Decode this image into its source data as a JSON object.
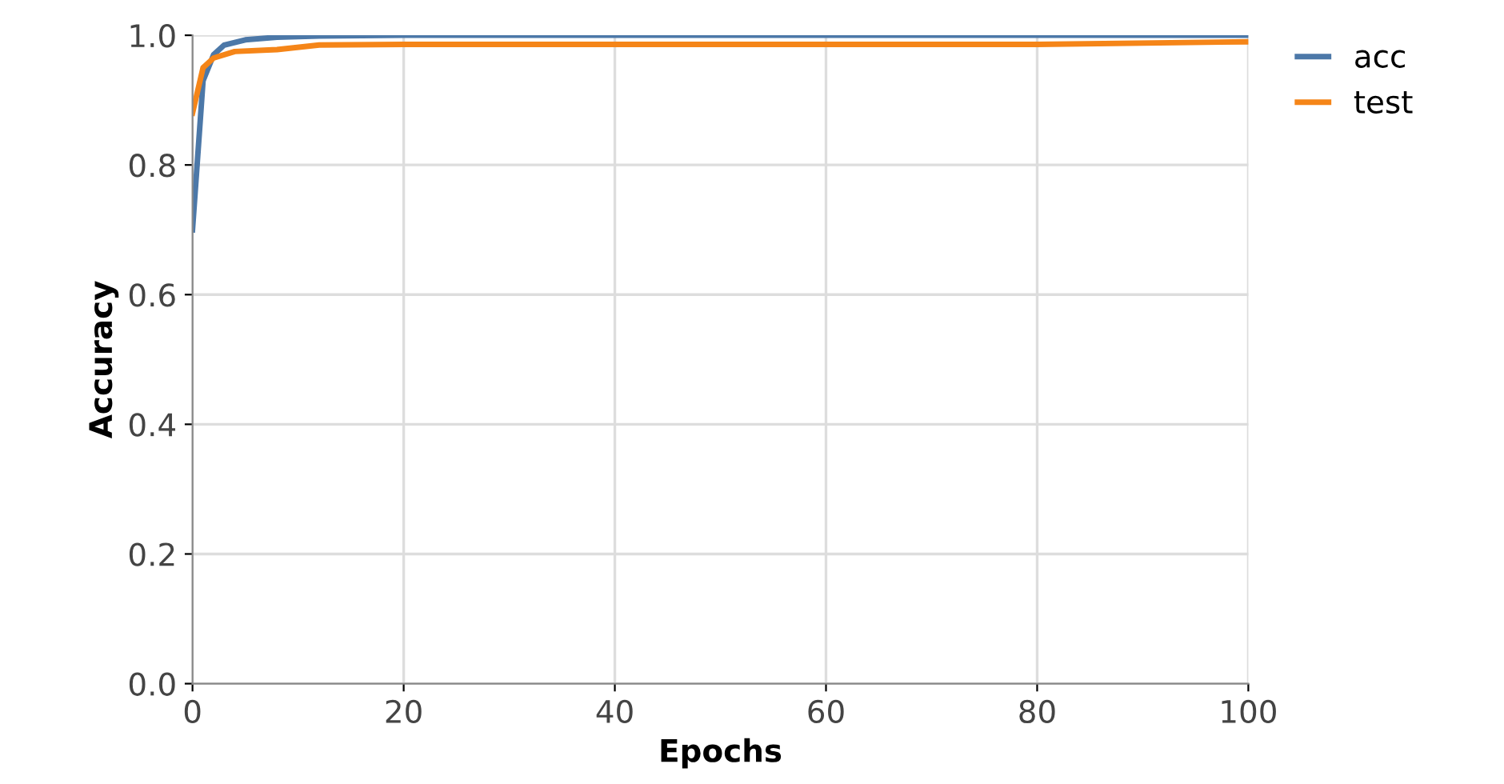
{
  "chart_data": {
    "type": "line",
    "xlabel": "Epochs",
    "ylabel": "Accuracy",
    "xlim": [
      0,
      100
    ],
    "xticks": [
      0,
      20,
      40,
      60,
      80,
      100
    ],
    "ylim": [
      0,
      1
    ],
    "yticks": [
      {
        "value": 0,
        "label": "0.0"
      },
      {
        "value": 0.2,
        "label": "0.2"
      },
      {
        "value": 0.4,
        "label": "0.4"
      },
      {
        "value": 0.6,
        "label": "0.6"
      },
      {
        "value": 0.8,
        "label": "0.8"
      },
      {
        "value": 1,
        "label": "1.0"
      }
    ],
    "grid": true,
    "legend": "top right",
    "series": [
      {
        "name": "acc",
        "color": "#4c78a8",
        "x": [
          0,
          1,
          2,
          3,
          5,
          8,
          12,
          20,
          40,
          60,
          80,
          100
        ],
        "values": [
          0.7,
          0.93,
          0.97,
          0.985,
          0.993,
          0.997,
          0.999,
          1.0,
          1.0,
          1.0,
          1.0,
          1.0
        ]
      },
      {
        "name": "test",
        "color": "#f58518",
        "x": [
          0,
          1,
          2,
          4,
          8,
          12,
          20,
          40,
          60,
          80,
          100
        ],
        "values": [
          0.88,
          0.95,
          0.965,
          0.975,
          0.978,
          0.985,
          0.986,
          0.986,
          0.986,
          0.986,
          0.99
        ]
      }
    ]
  }
}
